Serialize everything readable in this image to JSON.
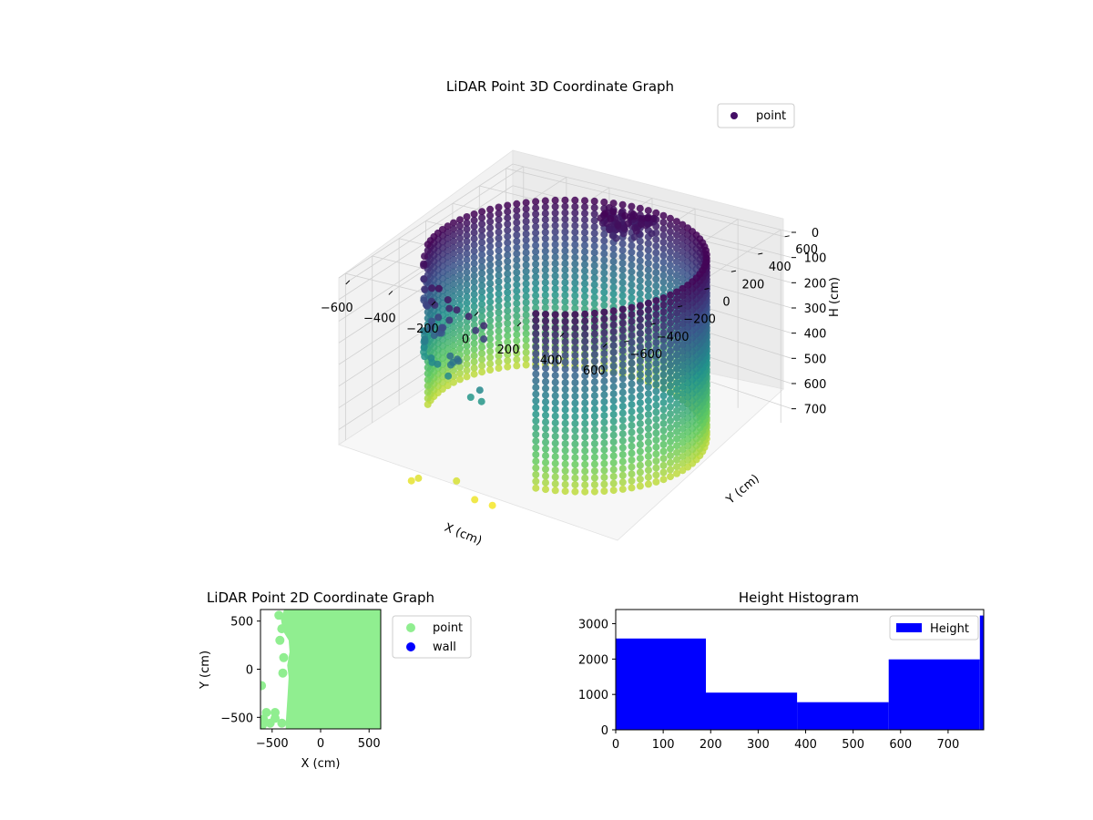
{
  "chart_data": [
    {
      "type": "scatter",
      "projection": "3d",
      "title": "LiDAR Point 3D Coordinate Graph",
      "xlabel": "X (cm)",
      "ylabel": "Y (cm)",
      "zlabel": "H (cm)",
      "x_ticks": [
        "−600",
        "−400",
        "−200",
        "0",
        "200",
        "400",
        "600"
      ],
      "y_ticks": [
        "−600",
        "−400",
        "−200",
        "0",
        "200",
        "400",
        "600"
      ],
      "z_ticks": [
        "0",
        "100",
        "200",
        "300",
        "400",
        "500",
        "600",
        "700"
      ],
      "xlim": [
        -650,
        650
      ],
      "ylim": [
        -650,
        650
      ],
      "zlim": [
        0,
        770
      ],
      "z_inverted": true,
      "grid": true,
      "colormap": "viridis",
      "legend": {
        "placement": "upper right",
        "entries": [
          {
            "label": "point",
            "color": "#440f66"
          }
        ]
      },
      "series": [
        {
          "name": "point",
          "shape": "partial cylindrical wall",
          "radius_cm": 560,
          "height_range": [
            0,
            770
          ],
          "angle_range_deg": [
            -70,
            200
          ]
        }
      ]
    },
    {
      "type": "scatter",
      "title": "LiDAR Point 2D Coordinate Graph",
      "xlabel": "X (cm)",
      "ylabel": "Y (cm)",
      "x_ticks": [
        "−500",
        "0",
        "500"
      ],
      "y_ticks": [
        "500",
        "0",
        "−500"
      ],
      "xlim": [
        -620,
        620
      ],
      "ylim": [
        -620,
        620
      ],
      "legend": {
        "placement": "outside right",
        "entries": [
          {
            "label": "point",
            "color": "#90ee90"
          },
          {
            "label": "wall",
            "color": "#0000ff"
          }
        ]
      },
      "series": [
        {
          "name": "point",
          "color": "#90ee90"
        },
        {
          "name": "wall",
          "color": "#0000ff"
        }
      ]
    },
    {
      "type": "bar",
      "subtype": "histogram",
      "title": "Height Histogram",
      "x_ticks": [
        "0",
        "100",
        "200",
        "300",
        "400",
        "500",
        "600",
        "700"
      ],
      "y_ticks": [
        "0",
        "1000",
        "2000",
        "3000"
      ],
      "xlim": [
        0,
        775
      ],
      "ylim": [
        0,
        3400
      ],
      "bins": [
        {
          "from": 0,
          "to": 190,
          "count": 2580
        },
        {
          "from": 190,
          "to": 382,
          "count": 1050
        },
        {
          "from": 382,
          "to": 575,
          "count": 780
        },
        {
          "from": 575,
          "to": 767,
          "count": 1990
        },
        {
          "from": 767,
          "to": 775,
          "count": 3230
        }
      ],
      "color": "#0000ff",
      "legend": {
        "placement": "upper right",
        "entries": [
          {
            "label": "Height",
            "color": "#0000ff"
          }
        ]
      }
    }
  ]
}
